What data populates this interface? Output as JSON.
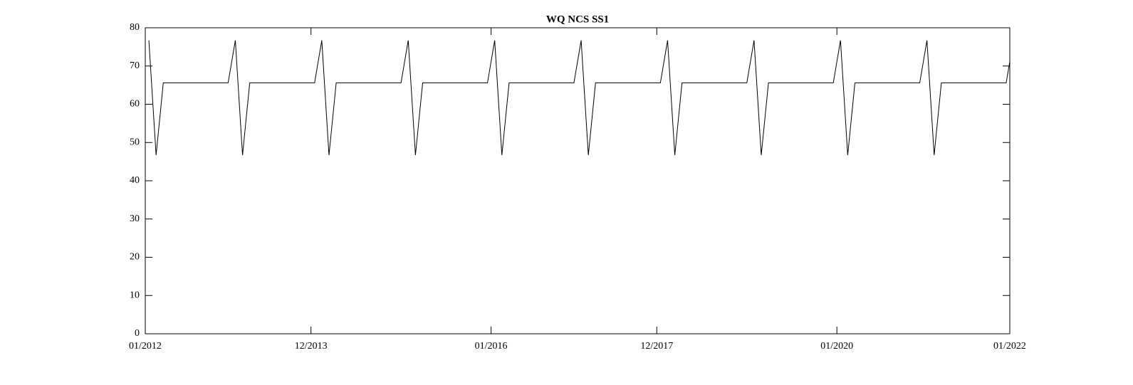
{
  "chart_data": {
    "type": "line",
    "title": "WQ NCS SS1",
    "x": [
      "2012-01",
      "2012-02",
      "2012-03",
      "2012-04",
      "2012-05",
      "2012-06",
      "2012-07",
      "2012-08",
      "2012-09",
      "2012-10",
      "2012-11",
      "2012-12",
      "2013-01",
      "2013-02",
      "2013-03",
      "2013-04",
      "2013-05",
      "2013-06",
      "2013-07",
      "2013-08",
      "2013-09",
      "2013-10",
      "2013-11",
      "2013-12",
      "2014-01",
      "2014-02",
      "2014-03",
      "2014-04",
      "2014-05",
      "2014-06",
      "2014-07",
      "2014-08",
      "2014-09",
      "2014-10",
      "2014-11",
      "2014-12",
      "2015-01",
      "2015-02",
      "2015-03",
      "2015-04",
      "2015-05",
      "2015-06",
      "2015-07",
      "2015-08",
      "2015-09",
      "2015-10",
      "2015-11",
      "2015-12",
      "2016-01",
      "2016-02",
      "2016-03",
      "2016-04",
      "2016-05",
      "2016-06",
      "2016-07",
      "2016-08",
      "2016-09",
      "2016-10",
      "2016-11",
      "2016-12",
      "2017-01",
      "2017-02",
      "2017-03",
      "2017-04",
      "2017-05",
      "2017-06",
      "2017-07",
      "2017-08",
      "2017-09",
      "2017-10",
      "2017-11",
      "2017-12",
      "2018-01",
      "2018-02",
      "2018-03",
      "2018-04",
      "2018-05",
      "2018-06",
      "2018-07",
      "2018-08",
      "2018-09",
      "2018-10",
      "2018-11",
      "2018-12",
      "2019-01",
      "2019-02",
      "2019-03",
      "2019-04",
      "2019-05",
      "2019-06",
      "2019-07",
      "2019-08",
      "2019-09",
      "2019-10",
      "2019-11",
      "2019-12",
      "2020-01",
      "2020-02",
      "2020-03",
      "2020-04",
      "2020-05",
      "2020-06",
      "2020-07",
      "2020-08",
      "2020-09",
      "2020-10",
      "2020-11",
      "2020-12",
      "2021-01",
      "2021-02",
      "2021-03",
      "2021-04",
      "2021-05",
      "2021-06",
      "2021-07",
      "2021-08",
      "2021-09",
      "2021-10",
      "2021-11",
      "2021-12",
      "2022-01"
    ],
    "series": [
      {
        "color": "#000000",
        "values": [
          76.7,
          46.7,
          65.6,
          65.6,
          65.6,
          65.6,
          65.6,
          65.6,
          65.6,
          65.6,
          65.6,
          65.6,
          76.7,
          46.7,
          65.6,
          65.6,
          65.6,
          65.6,
          65.6,
          65.6,
          65.6,
          65.6,
          65.6,
          65.6,
          76.7,
          46.7,
          65.6,
          65.6,
          65.6,
          65.6,
          65.6,
          65.6,
          65.6,
          65.6,
          65.6,
          65.6,
          76.7,
          46.7,
          65.6,
          65.6,
          65.6,
          65.6,
          65.6,
          65.6,
          65.6,
          65.6,
          65.6,
          65.6,
          76.7,
          46.7,
          65.6,
          65.6,
          65.6,
          65.6,
          65.6,
          65.6,
          65.6,
          65.6,
          65.6,
          65.6,
          76.7,
          46.7,
          65.6,
          65.6,
          65.6,
          65.6,
          65.6,
          65.6,
          65.6,
          65.6,
          65.6,
          65.6,
          76.7,
          46.7,
          65.6,
          65.6,
          65.6,
          65.6,
          65.6,
          65.6,
          65.6,
          65.6,
          65.6,
          65.6,
          76.7,
          46.7,
          65.6,
          65.6,
          65.6,
          65.6,
          65.6,
          65.6,
          65.6,
          65.6,
          65.6,
          65.6,
          76.7,
          46.7,
          65.6,
          65.6,
          65.6,
          65.6,
          65.6,
          65.6,
          65.6,
          65.6,
          65.6,
          65.6,
          76.7,
          46.7,
          65.6,
          65.6,
          65.6,
          65.6,
          65.6,
          65.6,
          65.6,
          65.6,
          65.6,
          65.6,
          76.7
        ]
      }
    ],
    "xlim": [
      "2012-01",
      "2022-01"
    ],
    "xticks": [
      {
        "value": "2012-01",
        "label": "01/2012"
      },
      {
        "value": "2013-12",
        "label": "12/2013"
      },
      {
        "value": "2016-01",
        "label": "01/2016"
      },
      {
        "value": "2017-12",
        "label": "12/2017"
      },
      {
        "value": "2020-01",
        "label": "01/2020"
      },
      {
        "value": "2022-01",
        "label": "01/2022"
      }
    ],
    "ylim": [
      0,
      80
    ],
    "yticks": [
      0,
      10,
      20,
      30,
      40,
      50,
      60,
      70,
      80
    ],
    "grid": false
  }
}
